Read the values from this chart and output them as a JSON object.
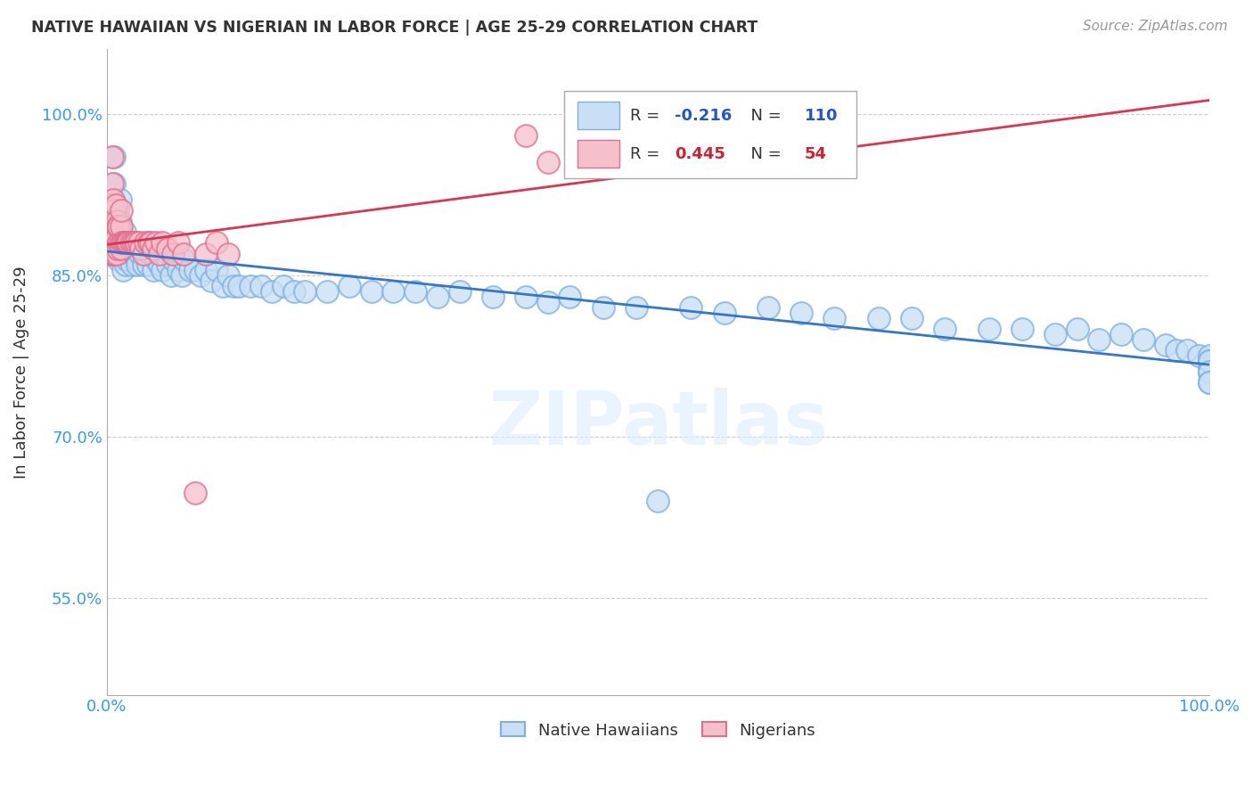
{
  "title": "NATIVE HAWAIIAN VS NIGERIAN IN LABOR FORCE | AGE 25-29 CORRELATION CHART",
  "source": "Source: ZipAtlas.com",
  "ylabel": "In Labor Force | Age 25-29",
  "watermark": "ZIPatlas",
  "blue_label": "Native Hawaiians",
  "pink_label": "Nigerians",
  "blue_R": -0.216,
  "blue_N": 110,
  "pink_R": 0.445,
  "pink_N": 54,
  "blue_face_color": "#c8dff5",
  "blue_edge_color": "#7fb0e0",
  "pink_face_color": "#f5c0cc",
  "pink_edge_color": "#e07090",
  "blue_line_color": "#3377cc",
  "pink_line_color": "#dd3355",
  "legend_R_blue_color": "#2255cc",
  "legend_R_pink_color": "#cc2233",
  "legend_N_blue_color": "#2255cc",
  "legend_N_pink_color": "#cc2233",
  "xlim": [
    0.0,
    1.0
  ],
  "ylim": [
    0.46,
    1.06
  ],
  "yticks": [
    0.55,
    0.7,
    0.85,
    1.0
  ],
  "ytick_labels": [
    "55.0%",
    "70.0%",
    "85.0%",
    "100.0%"
  ],
  "xtick_labels": [
    "0.0%",
    "100.0%"
  ],
  "blue_x": [
    0.005,
    0.007,
    0.007,
    0.008,
    0.008,
    0.009,
    0.01,
    0.01,
    0.01,
    0.011,
    0.011,
    0.012,
    0.012,
    0.012,
    0.013,
    0.013,
    0.014,
    0.014,
    0.015,
    0.015,
    0.016,
    0.016,
    0.017,
    0.018,
    0.018,
    0.019,
    0.02,
    0.021,
    0.022,
    0.023,
    0.025,
    0.026,
    0.027,
    0.028,
    0.03,
    0.031,
    0.033,
    0.035,
    0.037,
    0.04,
    0.042,
    0.045,
    0.048,
    0.05,
    0.052,
    0.055,
    0.058,
    0.06,
    0.065,
    0.068,
    0.07,
    0.075,
    0.08,
    0.085,
    0.09,
    0.095,
    0.1,
    0.105,
    0.11,
    0.115,
    0.12,
    0.13,
    0.14,
    0.15,
    0.16,
    0.17,
    0.18,
    0.2,
    0.22,
    0.24,
    0.26,
    0.28,
    0.3,
    0.32,
    0.35,
    0.38,
    0.4,
    0.42,
    0.45,
    0.48,
    0.5,
    0.53,
    0.56,
    0.6,
    0.63,
    0.66,
    0.7,
    0.73,
    0.76,
    0.8,
    0.83,
    0.86,
    0.88,
    0.9,
    0.92,
    0.94,
    0.96,
    0.97,
    0.98,
    0.99,
    1.0,
    1.0,
    1.0,
    1.0,
    1.0,
    1.0,
    1.0,
    1.0,
    1.0,
    1.0
  ],
  "blue_y": [
    0.87,
    0.935,
    0.96,
    0.9,
    0.875,
    0.91,
    0.865,
    0.885,
    0.91,
    0.88,
    0.895,
    0.87,
    0.9,
    0.92,
    0.875,
    0.89,
    0.87,
    0.885,
    0.855,
    0.87,
    0.875,
    0.89,
    0.86,
    0.875,
    0.865,
    0.875,
    0.88,
    0.87,
    0.875,
    0.86,
    0.87,
    0.875,
    0.865,
    0.86,
    0.87,
    0.875,
    0.86,
    0.87,
    0.86,
    0.87,
    0.855,
    0.865,
    0.86,
    0.855,
    0.87,
    0.86,
    0.85,
    0.865,
    0.855,
    0.85,
    0.865,
    0.855,
    0.855,
    0.85,
    0.855,
    0.845,
    0.855,
    0.84,
    0.85,
    0.84,
    0.84,
    0.84,
    0.84,
    0.835,
    0.84,
    0.835,
    0.835,
    0.835,
    0.84,
    0.835,
    0.835,
    0.835,
    0.83,
    0.835,
    0.83,
    0.83,
    0.825,
    0.83,
    0.82,
    0.82,
    0.64,
    0.82,
    0.815,
    0.82,
    0.815,
    0.81,
    0.81,
    0.81,
    0.8,
    0.8,
    0.8,
    0.795,
    0.8,
    0.79,
    0.795,
    0.79,
    0.785,
    0.78,
    0.78,
    0.775,
    0.77,
    0.775,
    0.765,
    0.76,
    0.77,
    0.76,
    0.77,
    0.76,
    0.75,
    0.75
  ],
  "pink_x": [
    0.004,
    0.005,
    0.005,
    0.006,
    0.006,
    0.006,
    0.007,
    0.007,
    0.007,
    0.008,
    0.008,
    0.008,
    0.009,
    0.009,
    0.009,
    0.01,
    0.01,
    0.011,
    0.011,
    0.012,
    0.013,
    0.013,
    0.013,
    0.014,
    0.015,
    0.016,
    0.017,
    0.018,
    0.019,
    0.02,
    0.022,
    0.024,
    0.025,
    0.027,
    0.029,
    0.031,
    0.033,
    0.035,
    0.038,
    0.04,
    0.042,
    0.045,
    0.048,
    0.05,
    0.055,
    0.06,
    0.065,
    0.07,
    0.08,
    0.09,
    0.1,
    0.11,
    0.38,
    0.4
  ],
  "pink_y": [
    0.87,
    0.935,
    0.96,
    0.88,
    0.9,
    0.92,
    0.87,
    0.89,
    0.91,
    0.875,
    0.895,
    0.915,
    0.87,
    0.885,
    0.9,
    0.875,
    0.895,
    0.88,
    0.895,
    0.88,
    0.875,
    0.895,
    0.91,
    0.88,
    0.88,
    0.88,
    0.88,
    0.88,
    0.88,
    0.88,
    0.88,
    0.88,
    0.88,
    0.88,
    0.88,
    0.875,
    0.87,
    0.88,
    0.88,
    0.88,
    0.875,
    0.88,
    0.87,
    0.88,
    0.875,
    0.87,
    0.88,
    0.87,
    0.648,
    0.87,
    0.88,
    0.87,
    0.98,
    0.955
  ],
  "figsize": [
    14.06,
    8.92
  ],
  "dpi": 100
}
